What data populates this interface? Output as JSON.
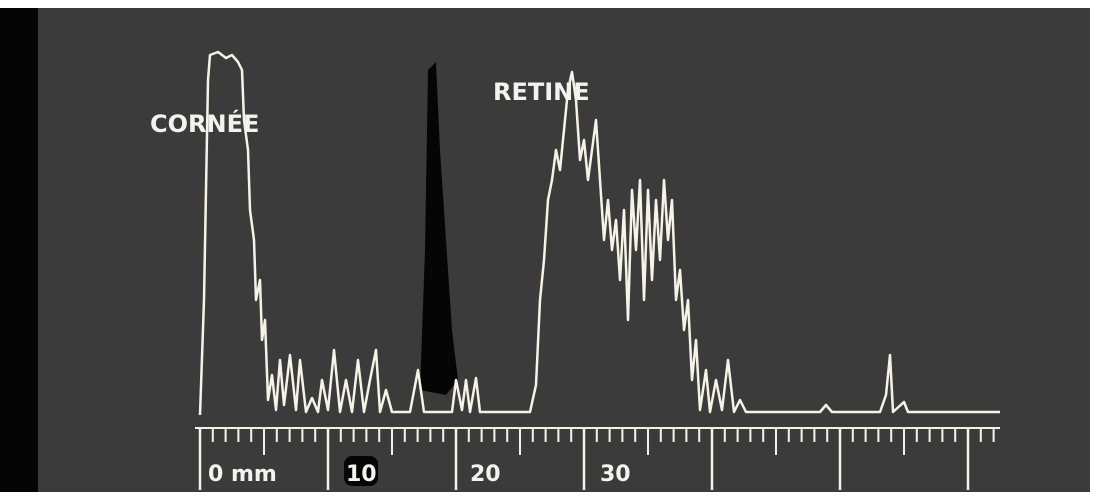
{
  "labels": {
    "cornea": "CORNÉE",
    "retina": "RETINE"
  },
  "scale": {
    "labels": [
      "0 mm",
      "10",
      "20",
      "30"
    ]
  }
}
